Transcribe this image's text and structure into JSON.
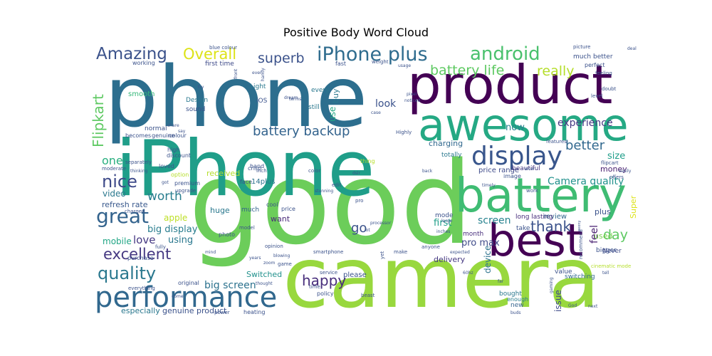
{
  "title": "Positive Body Word Cloud",
  "words": [
    {
      "text": "phone",
      "color": "#2c6e8e"
    },
    {
      "text": "good",
      "color": "#6ccd5a"
    },
    {
      "text": "camera",
      "color": "#98d83e"
    },
    {
      "text": "iPhone",
      "color": "#1f9e89"
    },
    {
      "text": "product",
      "color": "#440154"
    },
    {
      "text": "awesome",
      "color": "#25a984"
    },
    {
      "text": "battery",
      "color": "#3fbc73"
    },
    {
      "text": "best",
      "color": "#440154"
    },
    {
      "text": "performance",
      "color": "#31688e"
    },
    {
      "text": "display",
      "color": "#39568c"
    },
    {
      "text": "iPhone plus",
      "color": "#2f6c8e"
    },
    {
      "text": "Amazing",
      "color": "#3b528b"
    },
    {
      "text": "android",
      "color": "#4ac16d"
    },
    {
      "text": "great",
      "color": "#33638d"
    },
    {
      "text": "quality",
      "color": "#2a788e"
    },
    {
      "text": "excellent",
      "color": "#453882"
    },
    {
      "text": "battery backup",
      "color": "#33638d"
    },
    {
      "text": "battery life",
      "color": "#5ec962"
    },
    {
      "text": "nice",
      "color": "#3e4a89"
    },
    {
      "text": "really",
      "color": "#b5de2b"
    },
    {
      "text": "Overall",
      "color": "#dde318"
    },
    {
      "text": "superb",
      "color": "#3b528b"
    },
    {
      "text": "Flipkart",
      "color": "#5ec962"
    },
    {
      "text": "happy",
      "color": "#472d7b"
    },
    {
      "text": "thank",
      "color": "#3b528b"
    },
    {
      "text": "day",
      "color": "#5ec962"
    },
    {
      "text": "worth",
      "color": "#287d8e"
    },
    {
      "text": "better",
      "color": "#31688e"
    },
    {
      "text": "experience",
      "color": "#453882"
    },
    {
      "text": "Camera quality",
      "color": "#21918c"
    },
    {
      "text": "go",
      "color": "#3b528b"
    },
    {
      "text": "love",
      "color": "#453882"
    },
    {
      "text": "big screen",
      "color": "#2c728e"
    },
    {
      "text": "screen",
      "color": "#26828e"
    },
    {
      "text": "one",
      "color": "#29af7f"
    },
    {
      "text": "look",
      "color": "#3b528b"
    },
    {
      "text": "now",
      "color": "#26828e"
    },
    {
      "text": "feel",
      "color": "#481f70"
    },
    {
      "text": "size",
      "color": "#1f9e89"
    },
    {
      "text": "money",
      "color": "#481f70"
    },
    {
      "text": "big display",
      "color": "#287d8e"
    },
    {
      "text": "mobile",
      "color": "#21a685"
    },
    {
      "text": "apple",
      "color": "#bddf26"
    },
    {
      "text": "using",
      "color": "#2a788e"
    },
    {
      "text": "pro max",
      "color": "#3e4a89"
    },
    {
      "text": "device",
      "color": "#2c728e"
    },
    {
      "text": "first",
      "color": "#1f9e89"
    },
    {
      "text": "buy",
      "color": "#2a788e"
    },
    {
      "text": "use",
      "color": "#22a884"
    },
    {
      "text": "video",
      "color": "#2a788e"
    },
    {
      "text": "refresh rate",
      "color": "#38588c"
    },
    {
      "text": "plus",
      "color": "#3b528b"
    },
    {
      "text": "used",
      "color": "#7ad151"
    },
    {
      "text": "issue",
      "color": "#3e4a89"
    },
    {
      "text": "genuine product",
      "color": "#3b528b"
    },
    {
      "text": "especially",
      "color": "#2a788e"
    },
    {
      "text": "Switched",
      "color": "#21918c"
    },
    {
      "text": "received",
      "color": "#b5de2b"
    },
    {
      "text": "delivery",
      "color": "#453882"
    },
    {
      "text": "charging",
      "color": "#31688e"
    },
    {
      "text": "price range",
      "color": "#3e4a89"
    },
    {
      "text": "14plus",
      "color": "#2c728e"
    },
    {
      "text": "huge",
      "color": "#2a788e"
    },
    {
      "text": "much",
      "color": "#33638d"
    },
    {
      "text": "want",
      "color": "#482878"
    },
    {
      "text": "mode",
      "color": "#3b528b"
    },
    {
      "text": "month",
      "color": "#472d7b"
    },
    {
      "text": "review",
      "color": "#31688e"
    },
    {
      "text": "Super",
      "color": "#dde318"
    },
    {
      "text": "please",
      "color": "#3b528b"
    },
    {
      "text": "bought",
      "color": "#2a788e"
    },
    {
      "text": "new",
      "color": "#33638d"
    },
    {
      "text": "enough",
      "color": "#287d8e"
    },
    {
      "text": "value",
      "color": "#3b528b"
    },
    {
      "text": "switching",
      "color": "#31688e"
    },
    {
      "text": "totally",
      "color": "#2a788e"
    },
    {
      "text": "beautiful",
      "color": "#453882"
    },
    {
      "text": "long lasting",
      "color": "#472d7b"
    },
    {
      "text": "image",
      "color": "#3b528b"
    },
    {
      "text": "take",
      "color": "#3b528b"
    },
    {
      "text": "bigger",
      "color": "#3b528b"
    },
    {
      "text": "Never",
      "color": "#3e4a89"
    },
    {
      "text": "smooth",
      "color": "#35b779"
    },
    {
      "text": "Design",
      "color": "#2a788e"
    },
    {
      "text": "iOS",
      "color": "#3b528b"
    },
    {
      "text": "Light",
      "color": "#2a788e"
    },
    {
      "text": "first time",
      "color": "#3e4a89"
    },
    {
      "text": "every",
      "color": "#2a788e"
    },
    {
      "text": "still",
      "color": "#2a788e"
    },
    {
      "text": "sound",
      "color": "#3b528b"
    },
    {
      "text": "normal",
      "color": "#3b528b"
    },
    {
      "text": "colour",
      "color": "#3b528b"
    },
    {
      "text": "becomes",
      "color": "#3b528b"
    },
    {
      "text": "genuine",
      "color": "#3b528b"
    },
    {
      "text": "working",
      "color": "#3b528b"
    },
    {
      "text": "high",
      "color": "#3b528b"
    },
    {
      "text": "discount",
      "color": "#3b528b"
    },
    {
      "text": "loved",
      "color": "#3b528b"
    },
    {
      "text": "option",
      "color": "#b5de2b"
    },
    {
      "text": "separately",
      "color": "#3b528b"
    },
    {
      "text": "moderate",
      "color": "#3b528b"
    },
    {
      "text": "premium",
      "color": "#3b528b"
    },
    {
      "text": "upgrade",
      "color": "#3b528b"
    },
    {
      "text": "charged",
      "color": "#3b528b"
    },
    {
      "text": "purchase",
      "color": "#3b528b"
    },
    {
      "text": "fully",
      "color": "#3b528b"
    },
    {
      "text": "everything",
      "color": "#3b528b"
    },
    {
      "text": "original",
      "color": "#3b528b"
    },
    {
      "text": "power",
      "color": "#3b528b"
    },
    {
      "text": "heating",
      "color": "#3b528b"
    },
    {
      "text": "photo",
      "color": "#3b528b"
    },
    {
      "text": "opinion",
      "color": "#3b528b"
    },
    {
      "text": "smartphone",
      "color": "#3b528b"
    },
    {
      "text": "game",
      "color": "#3b528b"
    },
    {
      "text": "service",
      "color": "#3b528b"
    },
    {
      "text": "policy",
      "color": "#3b528b"
    },
    {
      "text": "time",
      "color": "#3b528b"
    },
    {
      "text": "beast",
      "color": "#3b528b"
    },
    {
      "text": "zoom",
      "color": "#3b528b"
    },
    {
      "text": "thought",
      "color": "#3b528b"
    },
    {
      "text": "crisp",
      "color": "#3b528b"
    },
    {
      "text": "face",
      "color": "#3b528b"
    },
    {
      "text": "hand",
      "color": "#3b528b"
    },
    {
      "text": "inch",
      "color": "#3b528b"
    },
    {
      "text": "color",
      "color": "#3b528b"
    },
    {
      "text": "edit",
      "color": "#3b528b"
    },
    {
      "text": "thing",
      "color": "#b5de2b"
    },
    {
      "text": "cool",
      "color": "#3b528b"
    },
    {
      "text": "price",
      "color": "#3b528b"
    },
    {
      "text": "model",
      "color": "#3b528b"
    },
    {
      "text": "pro",
      "color": "#3b528b"
    },
    {
      "text": "make",
      "color": "#3b528b"
    },
    {
      "text": "anyone",
      "color": "#3b528b"
    },
    {
      "text": "yet",
      "color": "#3b528b"
    },
    {
      "text": "cinematic mode",
      "color": "#b5de2b"
    },
    {
      "text": "recommend",
      "color": "#3b528b"
    },
    {
      "text": "much better",
      "color": "#3b528b"
    },
    {
      "text": "perfect",
      "color": "#3b528b"
    },
    {
      "text": "feeling",
      "color": "#3b528b"
    },
    {
      "text": "level",
      "color": "#3b528b"
    },
    {
      "text": "doubt",
      "color": "#3b528b"
    },
    {
      "text": "features",
      "color": "#3b528b"
    },
    {
      "text": "flipcart",
      "color": "#3b528b"
    },
    {
      "text": "offers",
      "color": "#3b528b"
    },
    {
      "text": "easily",
      "color": "#3b528b"
    },
    {
      "text": "work",
      "color": "#3b528b"
    },
    {
      "text": "picture",
      "color": "#3b528b"
    },
    {
      "text": "weight",
      "color": "#3b528b"
    },
    {
      "text": "fast",
      "color": "#3b528b"
    },
    {
      "text": "usage",
      "color": "#3b528b"
    },
    {
      "text": "pixel",
      "color": "#3b528b"
    },
    {
      "text": "noticed",
      "color": "#3b528b"
    },
    {
      "text": "terms",
      "color": "#3b528b"
    },
    {
      "text": "case",
      "color": "#3b528b"
    },
    {
      "text": "Highly",
      "color": "#3b528b"
    },
    {
      "text": "try",
      "color": "#3b528b"
    },
    {
      "text": "blue colour",
      "color": "#3b528b"
    },
    {
      "text": "even",
      "color": "#3b528b"
    },
    {
      "text": "handy",
      "color": "#3b528b"
    },
    {
      "text": "dream",
      "color": "#3b528b"
    },
    {
      "text": "front",
      "color": "#3b528b"
    },
    {
      "text": "share",
      "color": "#3b528b"
    },
    {
      "text": "say",
      "color": "#3b528b"
    },
    {
      "text": "thinking",
      "color": "#3b528b"
    },
    {
      "text": "got",
      "color": "#3b528b"
    },
    {
      "text": "stunning",
      "color": "#3b528b"
    },
    {
      "text": "back",
      "color": "#3b528b"
    },
    {
      "text": "wow",
      "color": "#3b528b"
    },
    {
      "text": "timely",
      "color": "#3b528b"
    },
    {
      "text": "dslr",
      "color": "#3b528b"
    },
    {
      "text": "large",
      "color": "#3b528b"
    },
    {
      "text": "processor",
      "color": "#3b528b"
    },
    {
      "text": "lot",
      "color": "#3b528b"
    },
    {
      "text": "inches",
      "color": "#3b528b"
    },
    {
      "text": "peony",
      "color": "#3b528b"
    },
    {
      "text": "expected",
      "color": "#3b528b"
    },
    {
      "text": "blowing",
      "color": "#3b528b"
    },
    {
      "text": "mind",
      "color": "#3b528b"
    },
    {
      "text": "years",
      "color": "#3b528b"
    },
    {
      "text": "60hz",
      "color": "#3b528b"
    },
    {
      "text": "far",
      "color": "#3b528b"
    },
    {
      "text": "gaming",
      "color": "#3b528b"
    },
    {
      "text": "tell",
      "color": "#3b528b"
    },
    {
      "text": "next",
      "color": "#3b528b"
    },
    {
      "text": "God",
      "color": "#3b528b"
    },
    {
      "text": "come",
      "color": "#3b528b"
    },
    {
      "text": "deal",
      "color": "#3b528b"
    },
    {
      "text": "buds",
      "color": "#3b528b"
    }
  ]
}
